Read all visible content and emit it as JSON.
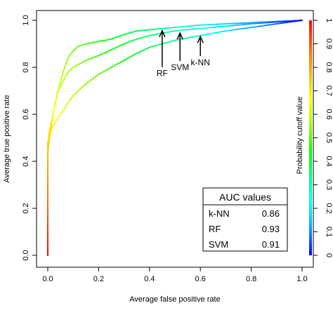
{
  "chart_data": {
    "type": "line",
    "xlabel": "Average false positive rate",
    "ylabel": "Average true positive rate",
    "colorbar_label": "Probability cutoff value",
    "xlim": [
      0,
      1
    ],
    "ylim": [
      0,
      1
    ],
    "x_ticks": [
      "0.0",
      "0.2",
      "0.4",
      "0.6",
      "0.8",
      "1.0"
    ],
    "y_ticks": [
      "0.0",
      "0.2",
      "0.4",
      "0.6",
      "0.8",
      "1.0"
    ],
    "colorbar_ticks": [
      "0",
      "0.1",
      "0.2",
      "0.3",
      "0.4",
      "0.5",
      "0.6",
      "0.7",
      "0.8",
      "0.9",
      "1"
    ],
    "colorbar_colors": [
      "#0000ff",
      "#00a0ff",
      "#00ffff",
      "#00ff80",
      "#00ff00",
      "#a0ff00",
      "#ffff00",
      "#ffb000",
      "#ff6000",
      "#ff0000"
    ],
    "series": [
      {
        "name": "RF",
        "points": [
          [
            0,
            0
          ],
          [
            0,
            0.42
          ],
          [
            0.005,
            0.52
          ],
          [
            0.02,
            0.6
          ],
          [
            0.04,
            0.7
          ],
          [
            0.06,
            0.78
          ],
          [
            0.08,
            0.84
          ],
          [
            0.1,
            0.87
          ],
          [
            0.12,
            0.89
          ],
          [
            0.15,
            0.9
          ],
          [
            0.2,
            0.91
          ],
          [
            0.25,
            0.92
          ],
          [
            0.3,
            0.94
          ],
          [
            0.35,
            0.955
          ],
          [
            0.4,
            0.96
          ],
          [
            0.45,
            0.965
          ],
          [
            0.5,
            0.97
          ],
          [
            0.6,
            0.98
          ],
          [
            0.7,
            0.985
          ],
          [
            0.8,
            0.99
          ],
          [
            0.9,
            0.995
          ],
          [
            1,
            1
          ]
        ]
      },
      {
        "name": "SVM",
        "points": [
          [
            0,
            0
          ],
          [
            0,
            0.44
          ],
          [
            0.01,
            0.52
          ],
          [
            0.02,
            0.6
          ],
          [
            0.04,
            0.7
          ],
          [
            0.06,
            0.74
          ],
          [
            0.08,
            0.78
          ],
          [
            0.1,
            0.8
          ],
          [
            0.15,
            0.83
          ],
          [
            0.2,
            0.85
          ],
          [
            0.25,
            0.875
          ],
          [
            0.3,
            0.9
          ],
          [
            0.35,
            0.92
          ],
          [
            0.4,
            0.935
          ],
          [
            0.45,
            0.945
          ],
          [
            0.5,
            0.955
          ],
          [
            0.6,
            0.965
          ],
          [
            0.7,
            0.975
          ],
          [
            0.8,
            0.985
          ],
          [
            0.9,
            0.993
          ],
          [
            1,
            1
          ]
        ]
      },
      {
        "name": "k-NN",
        "points": [
          [
            0,
            0
          ],
          [
            0,
            0.48
          ],
          [
            0.005,
            0.5
          ],
          [
            0.02,
            0.55
          ],
          [
            0.05,
            0.6
          ],
          [
            0.08,
            0.65
          ],
          [
            0.1,
            0.68
          ],
          [
            0.15,
            0.73
          ],
          [
            0.2,
            0.77
          ],
          [
            0.25,
            0.8
          ],
          [
            0.3,
            0.83
          ],
          [
            0.35,
            0.86
          ],
          [
            0.4,
            0.885
          ],
          [
            0.45,
            0.9
          ],
          [
            0.5,
            0.915
          ],
          [
            0.6,
            0.935
          ],
          [
            0.7,
            0.955
          ],
          [
            0.8,
            0.97
          ],
          [
            0.9,
            0.985
          ],
          [
            1,
            1
          ]
        ]
      }
    ],
    "annotations": [
      {
        "label": "RF",
        "x": 0.45,
        "y": 0.965
      },
      {
        "label": "SVM",
        "x": 0.52,
        "y": 0.955
      },
      {
        "label": "k-NN",
        "x": 0.6,
        "y": 0.94
      }
    ],
    "auc_table": {
      "title": "AUC values",
      "rows": [
        {
          "model": "k-NN",
          "value": "0.86"
        },
        {
          "model": "RF",
          "value": "0.93"
        },
        {
          "model": "SVM",
          "value": "0.91"
        }
      ]
    }
  }
}
